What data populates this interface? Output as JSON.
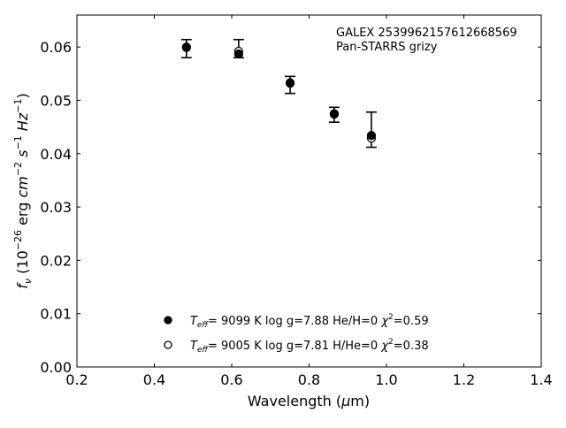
{
  "chart_data": {
    "type": "scatter",
    "xlabel": "Wavelength (μm)",
    "ylabel": "f_ν (10^-26 erg cm^-2 s^-1 Hz^-1)",
    "xlim": [
      0.2,
      1.4
    ],
    "ylim": [
      0.0,
      0.066
    ],
    "xticks": [
      "0.2",
      "0.4",
      "0.6",
      "0.8",
      "1.0",
      "1.2",
      "1.4"
    ],
    "yticks": [
      "0.00",
      "0.01",
      "0.02",
      "0.03",
      "0.04",
      "0.05",
      "0.06"
    ],
    "grid": false,
    "annotation": [
      "GALEX 2539962157612668569",
      "Pan-STARRS grizy"
    ],
    "observed": {
      "x": [
        0.483,
        0.618,
        0.751,
        0.865,
        0.961
      ],
      "y": [
        0.0597,
        0.0597,
        0.0529,
        0.0473,
        0.0445
      ],
      "yerr": [
        0.0017,
        0.0017,
        0.0016,
        0.0014,
        0.0033
      ]
    },
    "series": [
      {
        "name": "T_eff= 9099 K  log g=7.88  He/H=0  χ²=0.59",
        "marker": "filled-circle",
        "label": {
          "teff": "9099 K",
          "logg": "log g=7.88",
          "comp": "He/H=0",
          "chi": "=0.59"
        },
        "x": [
          0.483,
          0.618,
          0.751,
          0.865,
          0.961
        ],
        "y": [
          0.06,
          0.0587,
          0.0533,
          0.0475,
          0.0434
        ]
      },
      {
        "name": "T_eff= 9005 K  log g=7.81  H/He=0  χ²=0.38",
        "marker": "open-circle",
        "label": {
          "teff": "9005 K",
          "logg": "log g=7.81",
          "comp": "H/He=0",
          "chi": "=0.38"
        },
        "x": [
          0.483,
          0.618,
          0.751,
          0.865,
          0.961
        ],
        "y": [
          0.0599,
          0.0592,
          0.0532,
          0.0474,
          0.0429
        ]
      }
    ],
    "legend_placement": "bottom-center"
  }
}
